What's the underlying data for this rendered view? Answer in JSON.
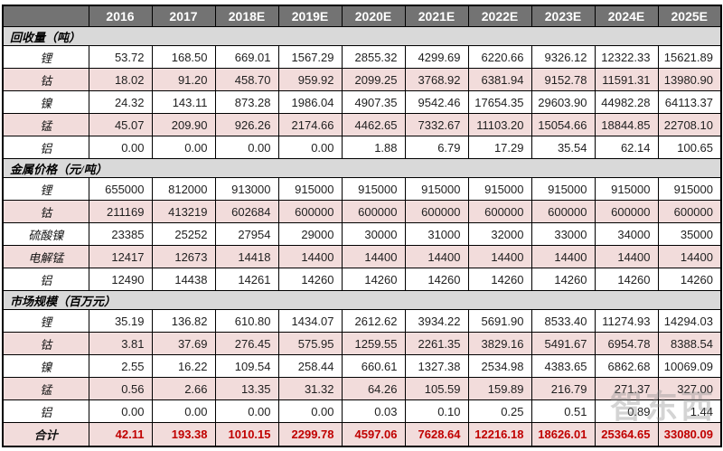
{
  "chart_data": {
    "type": "table",
    "corner_label": "",
    "columns": [
      "2016",
      "2017",
      "2018E",
      "2019E",
      "2020E",
      "2021E",
      "2022E",
      "2023E",
      "2024E",
      "2025E"
    ],
    "sections": [
      {
        "title": "回收量（吨）",
        "rows": [
          {
            "label": "锂",
            "values": [
              "53.72",
              "168.50",
              "669.01",
              "1567.29",
              "2855.32",
              "4299.69",
              "6220.66",
              "9326.12",
              "12322.33",
              "15621.89"
            ]
          },
          {
            "label": "钴",
            "values": [
              "18.02",
              "91.20",
              "458.70",
              "959.92",
              "2099.25",
              "3768.92",
              "6381.94",
              "9152.78",
              "11591.31",
              "13980.90"
            ]
          },
          {
            "label": "镍",
            "values": [
              "24.32",
              "143.11",
              "873.28",
              "1986.04",
              "4907.35",
              "9542.46",
              "17654.35",
              "29603.90",
              "44982.28",
              "64113.37"
            ]
          },
          {
            "label": "锰",
            "values": [
              "45.07",
              "209.90",
              "926.26",
              "2174.66",
              "4462.65",
              "7332.67",
              "11103.20",
              "15054.66",
              "18844.85",
              "22708.10"
            ]
          },
          {
            "label": "铝",
            "values": [
              "0.00",
              "0.00",
              "0.00",
              "0.00",
              "1.88",
              "6.79",
              "17.29",
              "35.54",
              "62.14",
              "100.65"
            ]
          }
        ]
      },
      {
        "title": "金属价格（元/吨）",
        "rows": [
          {
            "label": "锂",
            "values": [
              "655000",
              "812000",
              "913000",
              "915000",
              "915000",
              "915000",
              "915000",
              "915000",
              "915000",
              "915000"
            ]
          },
          {
            "label": "钴",
            "values": [
              "211169",
              "413219",
              "602684",
              "600000",
              "600000",
              "600000",
              "600000",
              "600000",
              "600000",
              "600000"
            ]
          },
          {
            "label": "硫酸镍",
            "values": [
              "23385",
              "25252",
              "27954",
              "29000",
              "30000",
              "31000",
              "32000",
              "33000",
              "34000",
              "35000"
            ]
          },
          {
            "label": "电解锰",
            "values": [
              "12417",
              "12673",
              "14418",
              "14400",
              "14400",
              "14400",
              "14400",
              "14400",
              "14400",
              "14400"
            ]
          },
          {
            "label": "铝",
            "values": [
              "12490",
              "14438",
              "14261",
              "14260",
              "14260",
              "14260",
              "14260",
              "14260",
              "14260",
              "14260"
            ]
          }
        ]
      },
      {
        "title": "市场规模（百万元）",
        "rows": [
          {
            "label": "锂",
            "values": [
              "35.19",
              "136.82",
              "610.80",
              "1434.07",
              "2612.62",
              "3934.22",
              "5691.90",
              "8533.40",
              "11274.93",
              "14294.03"
            ]
          },
          {
            "label": "钴",
            "values": [
              "3.81",
              "37.69",
              "276.45",
              "575.95",
              "1259.55",
              "2261.35",
              "3829.16",
              "5491.67",
              "6954.78",
              "8388.54"
            ]
          },
          {
            "label": "镍",
            "values": [
              "2.55",
              "16.22",
              "109.54",
              "258.44",
              "660.61",
              "1327.38",
              "2534.98",
              "4383.65",
              "6862.68",
              "10069.09"
            ]
          },
          {
            "label": "锰",
            "values": [
              "0.56",
              "2.66",
              "13.35",
              "31.32",
              "64.26",
              "105.59",
              "159.89",
              "216.79",
              "271.37",
              "327.00"
            ]
          },
          {
            "label": "铝",
            "values": [
              "0.00",
              "0.00",
              "0.00",
              "0.00",
              "0.03",
              "0.10",
              "0.25",
              "0.51",
              "0.89",
              "1.44"
            ]
          }
        ]
      }
    ],
    "total_row": {
      "label": "合计",
      "values": [
        "42.11",
        "193.38",
        "1010.15",
        "2299.78",
        "4597.06",
        "7628.64",
        "12216.18",
        "18626.01",
        "25364.65",
        "33080.09"
      ]
    }
  },
  "watermark": {
    "text": "智东西"
  },
  "colors": {
    "header_bg": "#737373",
    "header_text": "#ffffff",
    "section_bg": "#d9d9d9",
    "pink_row_bg": "#f2dcdb",
    "total_text": "#c00000",
    "border": "#000000"
  }
}
